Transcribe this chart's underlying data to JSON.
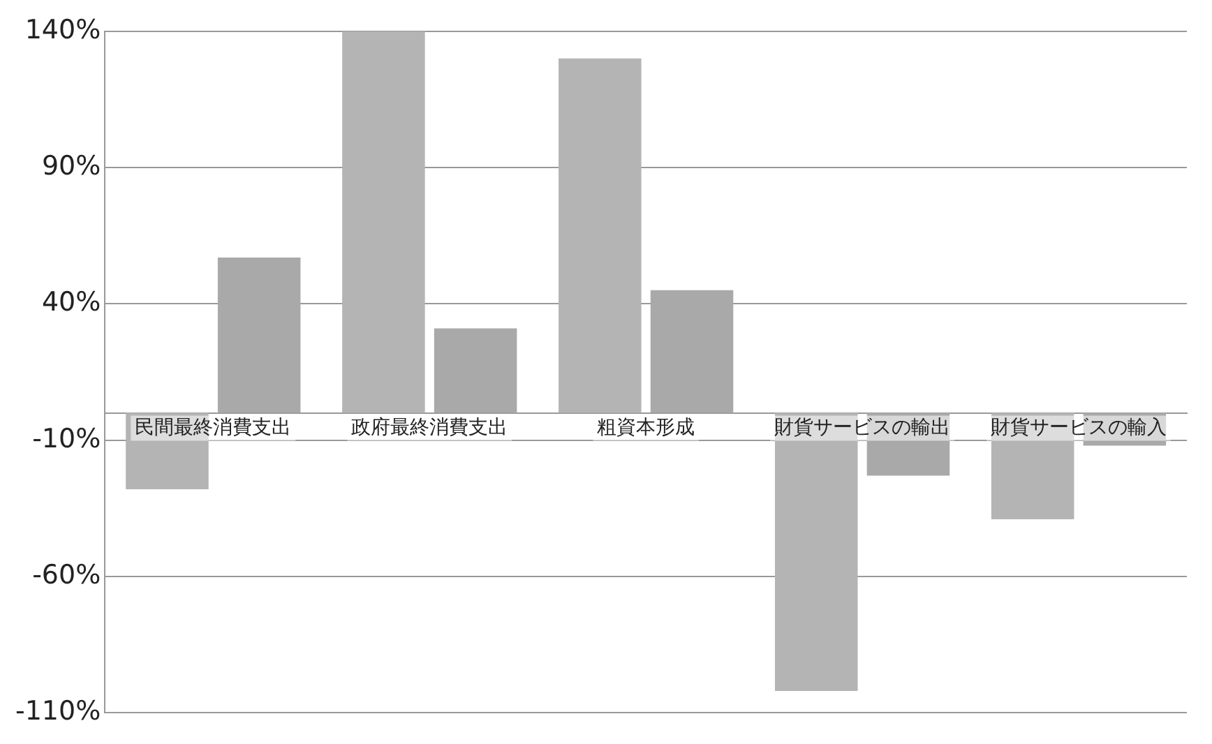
{
  "chart_data": {
    "type": "bar",
    "categories": [
      "民間最終消費支出",
      "政府最終消費支出",
      "粗資本形成",
      "財貨サービスの輸出",
      "財貨サービスの輸入"
    ],
    "series": [
      {
        "color": "#b4b4b4",
        "values": [
          -28,
          140,
          130,
          -102,
          -39
        ]
      },
      {
        "color": "#a9a9a9",
        "values": [
          57,
          31,
          45,
          -23,
          -12
        ]
      }
    ],
    "ylim": [
      -110,
      140
    ],
    "yticks": [
      {
        "value": -110,
        "label": "-110%"
      },
      {
        "value": -60,
        "label": "-60%"
      },
      {
        "value": -10,
        "label": "-10%"
      },
      {
        "value": 40,
        "label": "40%"
      },
      {
        "value": 90,
        "label": "90%"
      },
      {
        "value": 140,
        "label": "140%"
      }
    ],
    "grid": "y",
    "legend": false
  }
}
